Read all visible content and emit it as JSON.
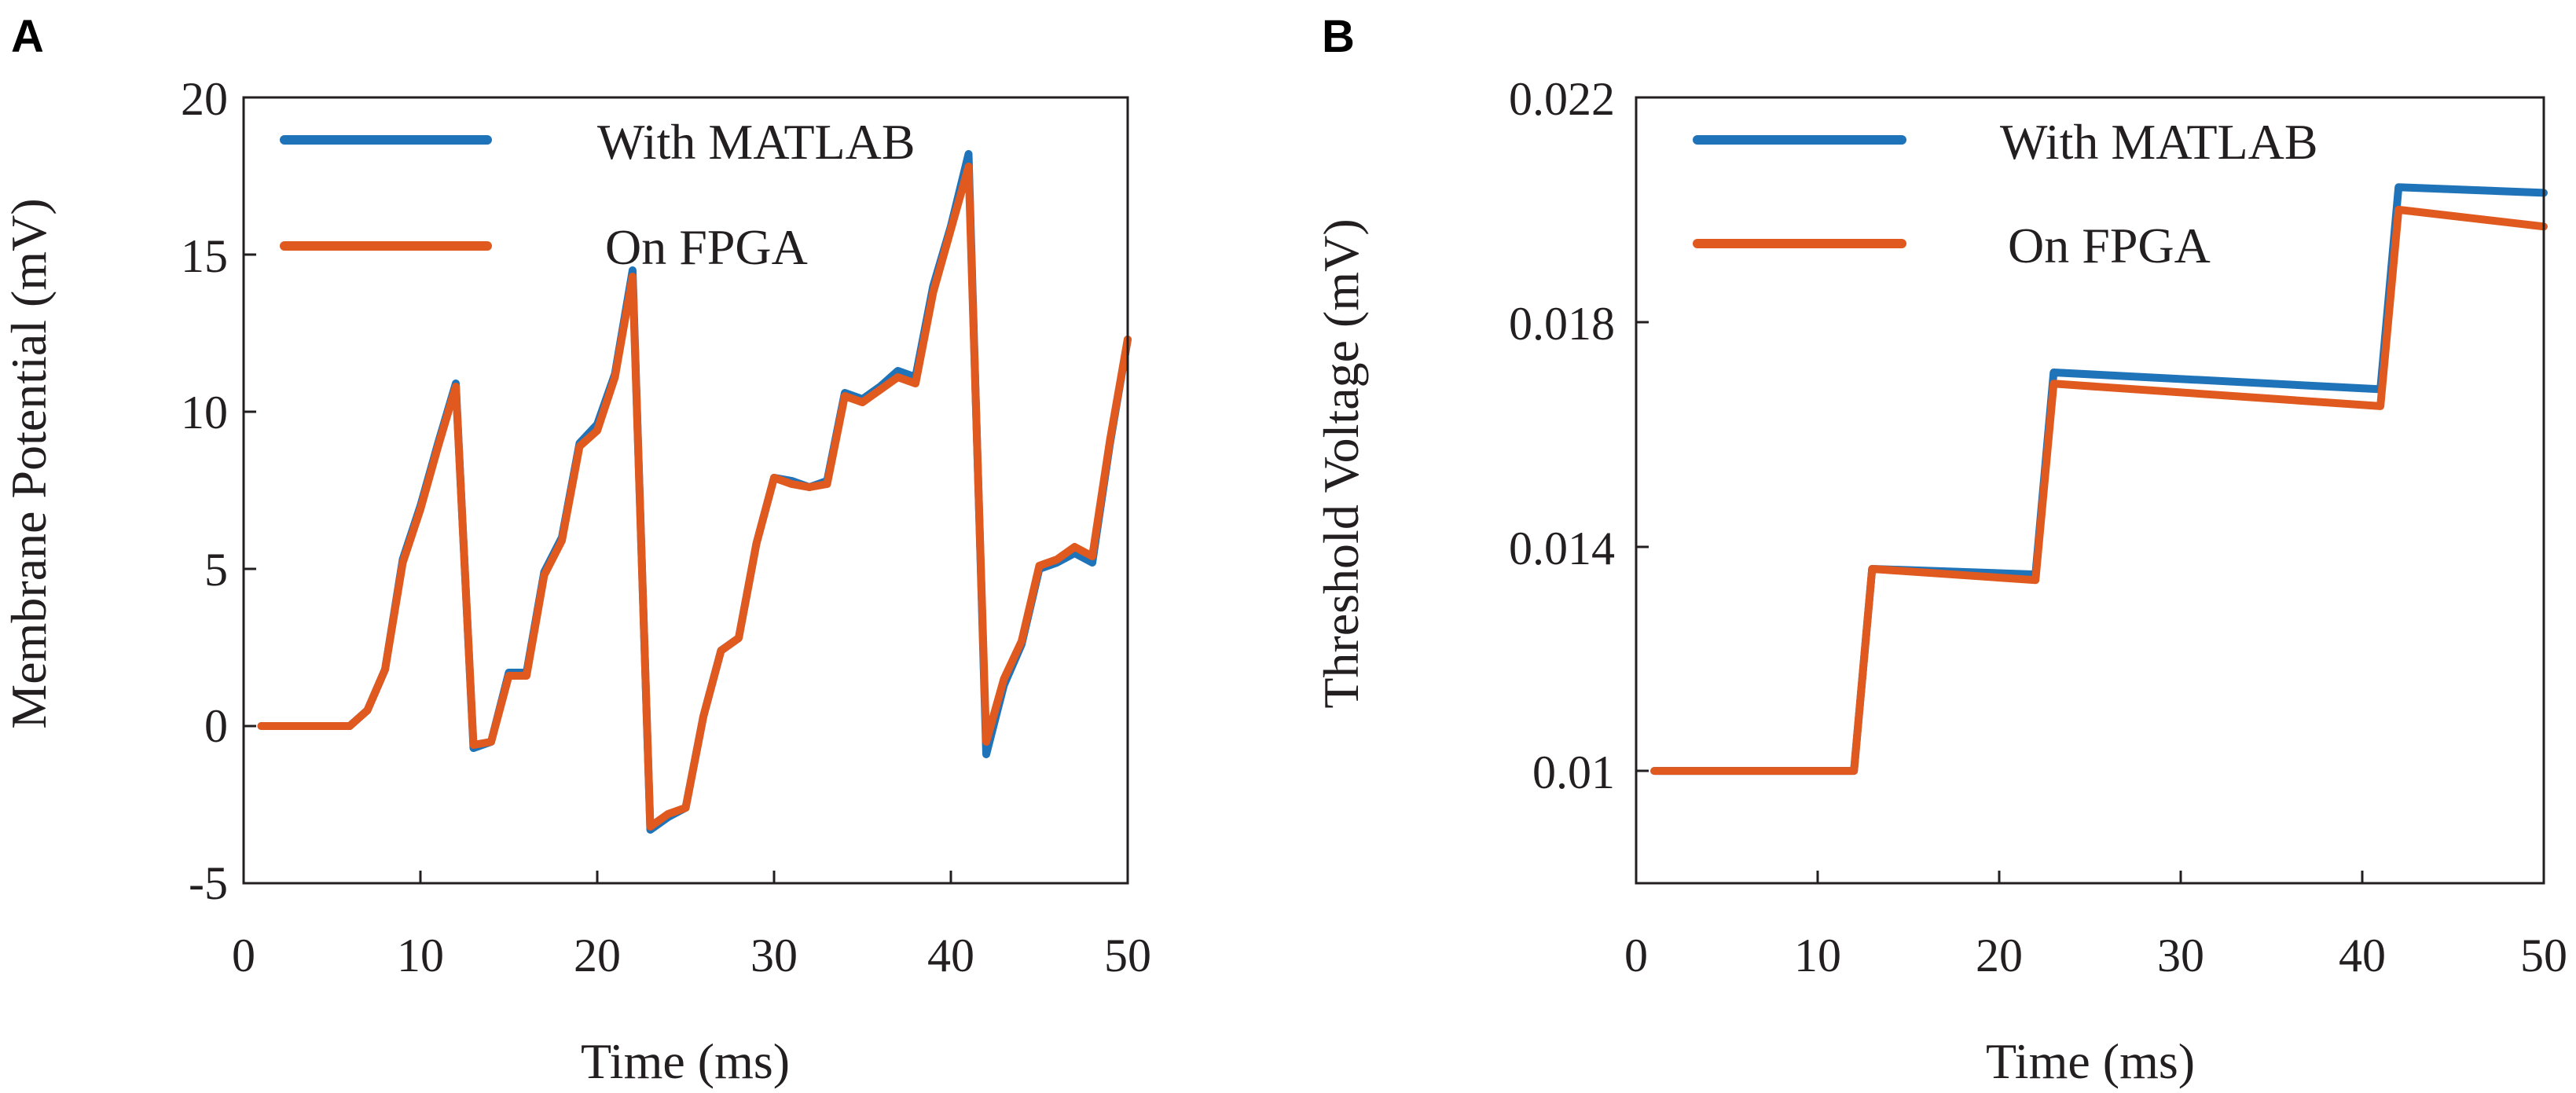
{
  "chart_data": [
    {
      "panel": "A",
      "type": "line",
      "title": "",
      "xlabel": "Time (ms)",
      "ylabel": "Membrane Potential (mV)",
      "xlim": [
        0,
        50
      ],
      "ylim": [
        -5,
        20
      ],
      "xticks": [
        0,
        10,
        20,
        30,
        40,
        50
      ],
      "yticks": [
        -5,
        0,
        5,
        10,
        15,
        20
      ],
      "ytick_labels": [
        "-5",
        "0",
        "5",
        "10",
        "15",
        "20"
      ],
      "legend_position": "top-left",
      "series": [
        {
          "name": "With MATLAB",
          "color": "#1f73b8",
          "x": [
            1,
            2,
            3,
            4,
            5,
            6,
            7,
            8,
            9,
            10,
            11,
            12,
            13,
            14,
            15,
            16,
            17,
            18,
            19,
            20,
            21,
            22,
            23,
            24,
            25,
            26,
            27,
            28,
            29,
            30,
            31,
            32,
            33,
            34,
            35,
            36,
            37,
            38,
            39,
            40,
            41,
            42,
            43,
            44,
            45,
            46,
            47,
            48,
            49,
            50
          ],
          "values": [
            0,
            0,
            0,
            0,
            0,
            0,
            0.5,
            1.8,
            5.3,
            7.0,
            9.0,
            10.9,
            -0.7,
            -0.5,
            1.7,
            1.7,
            4.9,
            6.0,
            9.0,
            9.6,
            11.2,
            14.5,
            -3.3,
            -2.9,
            -2.6,
            0.3,
            2.4,
            2.8,
            5.8,
            7.9,
            7.8,
            7.6,
            7.8,
            10.6,
            10.4,
            10.8,
            11.3,
            11.1,
            14.0,
            15.9,
            18.2,
            -0.9,
            1.3,
            2.6,
            5.0,
            5.2,
            5.5,
            5.2,
            9.0,
            12.3
          ]
        },
        {
          "name": "On FPGA",
          "color": "#e0591f",
          "x": [
            1,
            2,
            3,
            4,
            5,
            6,
            7,
            8,
            9,
            10,
            11,
            12,
            13,
            14,
            15,
            16,
            17,
            18,
            19,
            20,
            21,
            22,
            23,
            24,
            25,
            26,
            27,
            28,
            29,
            30,
            31,
            32,
            33,
            34,
            35,
            36,
            37,
            38,
            39,
            40,
            41,
            42,
            43,
            44,
            45,
            46,
            47,
            48,
            49,
            50
          ],
          "values": [
            0,
            0,
            0,
            0,
            0,
            0,
            0.5,
            1.8,
            5.2,
            6.9,
            8.9,
            10.8,
            -0.6,
            -0.5,
            1.6,
            1.6,
            4.8,
            5.9,
            8.9,
            9.4,
            11.1,
            14.3,
            -3.2,
            -2.8,
            -2.6,
            0.3,
            2.4,
            2.8,
            5.8,
            7.9,
            7.7,
            7.6,
            7.7,
            10.5,
            10.3,
            10.7,
            11.1,
            10.9,
            13.8,
            15.8,
            17.8,
            -0.5,
            1.5,
            2.7,
            5.1,
            5.3,
            5.7,
            5.4,
            9.1,
            12.3
          ]
        }
      ]
    },
    {
      "panel": "B",
      "type": "line",
      "title": "",
      "xlabel": "Time (ms)",
      "ylabel": "Threshold Voltage (mV)",
      "xlim": [
        0,
        50
      ],
      "ylim": [
        0.008,
        0.022
      ],
      "xticks": [
        0,
        10,
        20,
        30,
        40,
        50
      ],
      "yticks": [
        0.01,
        0.014,
        0.018,
        0.022
      ],
      "ytick_labels": [
        "0.01",
        "0.014",
        "0.018",
        "0.022"
      ],
      "legend_position": "top-left",
      "series": [
        {
          "name": "With MATLAB",
          "color": "#1f73b8",
          "x": [
            1,
            12,
            13,
            22,
            23,
            41,
            42,
            50
          ],
          "values": [
            0.01,
            0.01,
            0.0136,
            0.0135,
            0.0171,
            0.0168,
            0.0204,
            0.0203
          ]
        },
        {
          "name": "On FPGA",
          "color": "#e0591f",
          "x": [
            1,
            12,
            13,
            22,
            23,
            41,
            42,
            50
          ],
          "values": [
            0.01,
            0.01,
            0.0136,
            0.0134,
            0.0169,
            0.0165,
            0.02,
            0.0197
          ]
        }
      ]
    }
  ]
}
